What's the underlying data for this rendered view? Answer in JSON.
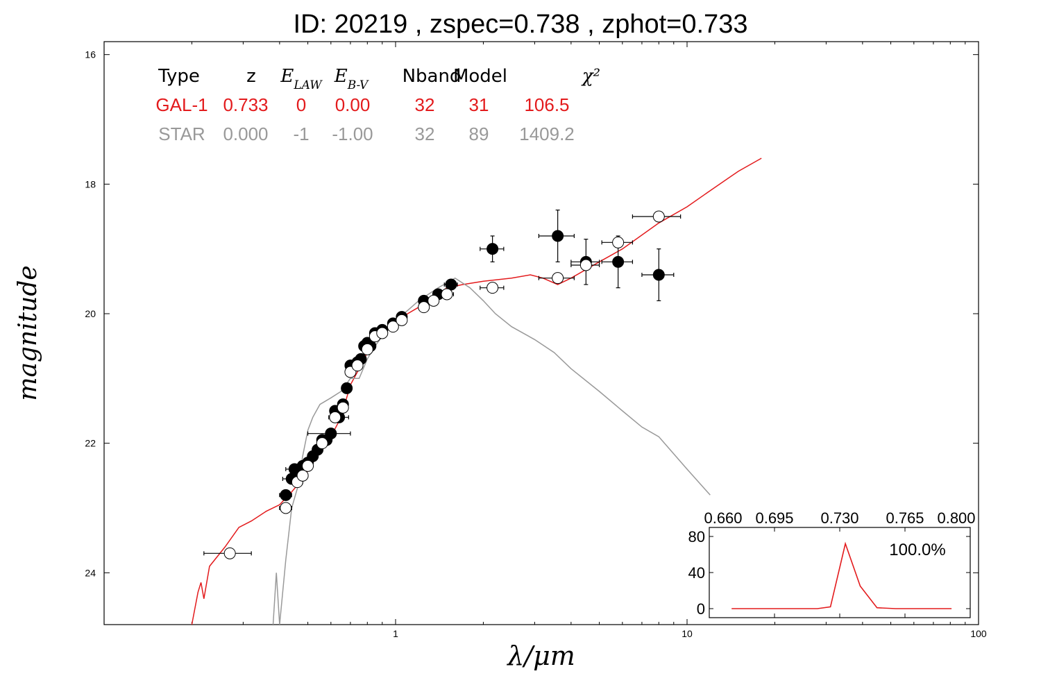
{
  "title": "ID:  20219 , zspec=0.738 , zphot=0.733",
  "chart_data": [
    {
      "type": "scatter",
      "title": "ID:  20219 , zspec=0.738 , zphot=0.733",
      "xlabel": "λ/μm",
      "ylabel": "magnitude",
      "x_scale": "log",
      "xlim": [
        0.1,
        100
      ],
      "ylim": [
        24.8,
        15.8
      ],
      "y_inverted": true,
      "x_tick_labels": [
        "1",
        "10",
        "100"
      ],
      "y_tick_labels": [
        "16",
        "18",
        "20",
        "22",
        "24"
      ],
      "x_ticks": [
        1,
        10,
        100
      ],
      "y_ticks": [
        16,
        18,
        20,
        22,
        24
      ],
      "grid": false,
      "fit_table": {
        "headers": [
          "Type",
          "z",
          "E_LAW",
          "E_B-V",
          "Nband",
          "Model",
          "χ²"
        ],
        "rows": [
          {
            "name": "GAL-1",
            "color": "#e31a1c",
            "cells": [
              "GAL-1",
              "0.733",
              "0",
              "0.00",
              "32",
              "31",
              "106.5"
            ]
          },
          {
            "name": "STAR",
            "color": "#999999",
            "cells": [
              "STAR",
              "0.000",
              "-1",
              "-1.00",
              "32",
              "89",
              "1409.2"
            ]
          }
        ]
      },
      "series": [
        {
          "name": "GAL-1",
          "kind": "line",
          "color": "#e31a1c",
          "points": [
            [
              0.2,
              24.8
            ],
            [
              0.21,
              24.3
            ],
            [
              0.215,
              24.15
            ],
            [
              0.22,
              24.4
            ],
            [
              0.23,
              23.9
            ],
            [
              0.26,
              23.6
            ],
            [
              0.29,
              23.3
            ],
            [
              0.32,
              23.2
            ],
            [
              0.36,
              23.05
            ],
            [
              0.4,
              22.95
            ],
            [
              0.44,
              22.75
            ],
            [
              0.48,
              22.55
            ],
            [
              0.52,
              22.3
            ],
            [
              0.56,
              22.1
            ],
            [
              0.6,
              21.9
            ],
            [
              0.65,
              21.6
            ],
            [
              0.7,
              21.1
            ],
            [
              0.75,
              20.85
            ],
            [
              0.8,
              20.6
            ],
            [
              0.85,
              20.4
            ],
            [
              0.9,
              20.3
            ],
            [
              1.0,
              20.15
            ],
            [
              1.1,
              20.0
            ],
            [
              1.2,
              19.9
            ],
            [
              1.3,
              19.8
            ],
            [
              1.4,
              19.7
            ],
            [
              1.5,
              19.6
            ],
            [
              1.7,
              19.55
            ],
            [
              2.0,
              19.5
            ],
            [
              2.5,
              19.45
            ],
            [
              2.9,
              19.4
            ],
            [
              3.2,
              19.45
            ],
            [
              3.6,
              19.55
            ],
            [
              4.0,
              19.45
            ],
            [
              5.0,
              19.2
            ],
            [
              6.0,
              19.0
            ],
            [
              8.0,
              18.6
            ],
            [
              10.0,
              18.35
            ],
            [
              12.0,
              18.1
            ],
            [
              15.0,
              17.8
            ],
            [
              18.0,
              17.6
            ]
          ]
        },
        {
          "name": "STAR",
          "kind": "line",
          "color": "#999999",
          "points": [
            [
              0.38,
              24.8
            ],
            [
              0.39,
              24.0
            ],
            [
              0.4,
              24.8
            ],
            [
              0.42,
              23.8
            ],
            [
              0.44,
              23.0
            ],
            [
              0.46,
              22.7
            ],
            [
              0.48,
              22.2
            ],
            [
              0.5,
              21.8
            ],
            [
              0.52,
              21.6
            ],
            [
              0.55,
              21.4
            ],
            [
              0.6,
              21.3
            ],
            [
              0.65,
              21.2
            ],
            [
              0.7,
              21.0
            ],
            [
              0.75,
              21.0
            ],
            [
              0.8,
              20.7
            ],
            [
              0.85,
              20.5
            ],
            [
              0.9,
              20.35
            ],
            [
              1.0,
              20.1
            ],
            [
              1.1,
              19.95
            ],
            [
              1.2,
              19.8
            ],
            [
              1.4,
              19.6
            ],
            [
              1.6,
              19.45
            ],
            [
              1.8,
              19.6
            ],
            [
              2.0,
              19.8
            ],
            [
              2.2,
              20.0
            ],
            [
              2.5,
              20.2
            ],
            [
              3.0,
              20.4
            ],
            [
              3.5,
              20.6
            ],
            [
              4.0,
              20.85
            ],
            [
              5.0,
              21.2
            ],
            [
              6.0,
              21.5
            ],
            [
              7.0,
              21.75
            ],
            [
              8.0,
              21.9
            ],
            [
              10.0,
              22.4
            ],
            [
              12.0,
              22.8
            ]
          ]
        },
        {
          "name": "observed",
          "kind": "points",
          "marker": "filled-circle",
          "color": "#000000",
          "points": [
            [
              0.42,
              22.8
            ],
            [
              0.44,
              22.55
            ],
            [
              0.45,
              22.4
            ],
            [
              0.46,
              22.45
            ],
            [
              0.48,
              22.35
            ],
            [
              0.5,
              22.3
            ],
            [
              0.52,
              22.2
            ],
            [
              0.54,
              22.1
            ],
            [
              0.56,
              21.95
            ],
            [
              0.58,
              21.95
            ],
            [
              0.6,
              21.85
            ],
            [
              0.62,
              21.5
            ],
            [
              0.64,
              21.6
            ],
            [
              0.66,
              21.4
            ],
            [
              0.68,
              21.15
            ],
            [
              0.7,
              20.8
            ],
            [
              0.74,
              20.75
            ],
            [
              0.76,
              20.7
            ],
            [
              0.78,
              20.5
            ],
            [
              0.8,
              20.45
            ],
            [
              0.82,
              20.5
            ],
            [
              0.85,
              20.3
            ],
            [
              0.9,
              20.25
            ],
            [
              0.98,
              20.15
            ],
            [
              1.05,
              20.05
            ],
            [
              1.25,
              19.8
            ],
            [
              1.4,
              19.7
            ],
            [
              1.55,
              19.55
            ],
            [
              2.15,
              19.0
            ],
            [
              3.6,
              18.8
            ],
            [
              4.5,
              19.2
            ],
            [
              5.8,
              19.2
            ],
            [
              8.0,
              19.4
            ]
          ],
          "yerr": [
            0.05,
            0.05,
            0.05,
            0.05,
            0.05,
            0.05,
            0.05,
            0.05,
            0.05,
            0.05,
            0.05,
            0.05,
            0.05,
            0.05,
            0.05,
            0.05,
            0.05,
            0.05,
            0.05,
            0.05,
            0.05,
            0.05,
            0.05,
            0.05,
            0.05,
            0.05,
            0.05,
            0.05,
            0.2,
            0.4,
            0.35,
            0.4,
            0.4
          ],
          "xerr": [
            0.02,
            0.03,
            0.03,
            0.02,
            0.02,
            0.02,
            0.02,
            0.02,
            0.02,
            0.02,
            0.1,
            0.02,
            0.05,
            0.02,
            0.02,
            0.02,
            0.02,
            0.03,
            0.03,
            0.02,
            0.02,
            0.02,
            0.02,
            0.02,
            0.02,
            0.05,
            0.05,
            0.08,
            0.2,
            0.5,
            0.5,
            0.7,
            1.0
          ]
        },
        {
          "name": "model",
          "kind": "points",
          "marker": "open-circle",
          "color": "#000000",
          "points": [
            [
              0.27,
              23.7
            ],
            [
              0.42,
              23.0
            ],
            [
              0.46,
              22.6
            ],
            [
              0.48,
              22.5
            ],
            [
              0.5,
              22.35
            ],
            [
              0.56,
              22.0
            ],
            [
              0.62,
              21.6
            ],
            [
              0.66,
              21.45
            ],
            [
              0.7,
              20.9
            ],
            [
              0.74,
              20.8
            ],
            [
              0.8,
              20.55
            ],
            [
              0.85,
              20.35
            ],
            [
              0.9,
              20.3
            ],
            [
              0.98,
              20.2
            ],
            [
              1.05,
              20.1
            ],
            [
              1.25,
              19.9
            ],
            [
              1.35,
              19.8
            ],
            [
              1.5,
              19.7
            ],
            [
              2.15,
              19.6
            ],
            [
              3.6,
              19.45
            ],
            [
              4.5,
              19.25
            ],
            [
              5.8,
              18.9
            ],
            [
              8.0,
              18.5
            ]
          ],
          "xerr": [
            0.05,
            0.02,
            0.02,
            0.02,
            0.02,
            0.02,
            0.02,
            0.02,
            0.02,
            0.02,
            0.02,
            0.02,
            0.02,
            0.02,
            0.02,
            0.05,
            0.05,
            0.08,
            0.2,
            0.5,
            0.5,
            0.7,
            1.5
          ]
        }
      ]
    },
    {
      "type": "line",
      "inset": true,
      "x_tick_labels": [
        "0.660",
        "0.695",
        "0.730",
        "0.765",
        "0.800"
      ],
      "x_ticks": [
        0.66,
        0.695,
        0.73,
        0.765,
        0.8
      ],
      "y_tick_labels": [
        "80",
        "40",
        "0"
      ],
      "y_ticks": [
        80,
        40,
        0
      ],
      "xlim": [
        0.66,
        0.8
      ],
      "ylim": [
        -10,
        90
      ],
      "annotation": "100.0%",
      "series": [
        {
          "color": "#e31a1c",
          "x": [
            0.672,
            0.712,
            0.718,
            0.725,
            0.733,
            0.741,
            0.75,
            0.76,
            0.79
          ],
          "y": [
            0,
            0,
            0,
            2,
            72,
            25,
            1,
            0,
            0
          ]
        }
      ]
    }
  ]
}
